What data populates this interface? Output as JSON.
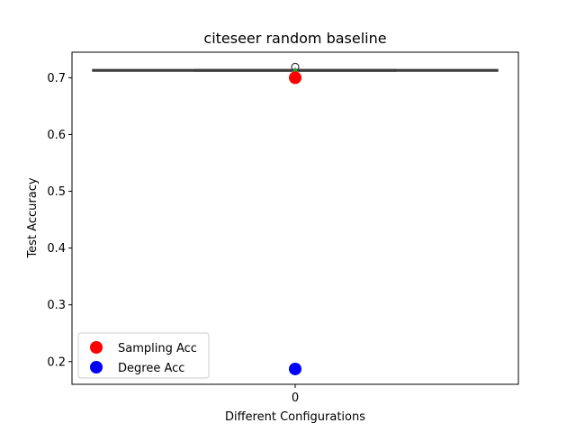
{
  "chart_data": {
    "type": "box",
    "title": "citeseer random baseline",
    "xlabel": "Different Configurations",
    "ylabel": "Test Accuracy",
    "categories": [
      "0"
    ],
    "ylim": [
      0.16,
      0.745
    ],
    "yticks": [
      0.2,
      0.3,
      0.4,
      0.5,
      0.6,
      0.7
    ],
    "ytick_labels": [
      "0.2",
      "0.3",
      "0.4",
      "0.5",
      "0.6",
      "0.7"
    ],
    "box": {
      "category": "0",
      "whisker_low": 0.712,
      "q1": 0.712,
      "median": 0.713,
      "q3": 0.714,
      "whisker_high": 0.714,
      "mean": 0.711,
      "outliers": [
        0.719
      ],
      "color": "#3b3b3b",
      "mean_color": "#2ca02c"
    },
    "scatter": [
      {
        "name": "Sampling Acc",
        "color": "#ff0000",
        "x": "0",
        "y": 0.7
      },
      {
        "name": "Degree Acc",
        "color": "#0000ff",
        "x": "0",
        "y": 0.187
      }
    ],
    "legend": {
      "placement": "lower-left",
      "entries": [
        {
          "label": "Sampling Acc",
          "color": "#ff0000"
        },
        {
          "label": "Degree Acc",
          "color": "#0000ff"
        }
      ]
    }
  }
}
